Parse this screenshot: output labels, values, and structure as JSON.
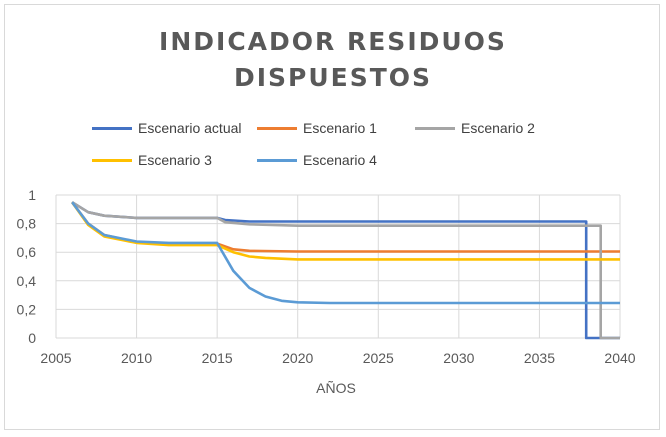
{
  "chart_data": {
    "type": "line",
    "title_lines": [
      "INDICADOR RESIDUOS",
      "DISPUESTOS"
    ],
    "xlabel": "AÑOS",
    "ylabel": "",
    "xlim": [
      2005,
      2040
    ],
    "ylim": [
      0,
      1
    ],
    "x_ticks": [
      2005,
      2010,
      2015,
      2020,
      2025,
      2030,
      2035,
      2040
    ],
    "y_ticks": [
      "0",
      "0,2",
      "0,4",
      "0,6",
      "0,8",
      "1"
    ],
    "grid": true,
    "legend_position": "top",
    "series": [
      {
        "name": "Escenario actual",
        "color": "#4472c4",
        "x": [
          2006,
          2007,
          2008,
          2010,
          2015,
          2015.5,
          2017,
          2020,
          2037.9,
          2037.9,
          2040
        ],
        "y": [
          0.95,
          0.88,
          0.855,
          0.84,
          0.84,
          0.825,
          0.815,
          0.815,
          0.815,
          0,
          0
        ]
      },
      {
        "name": "Escenario 1",
        "color": "#ed7d31",
        "x": [
          2006,
          2007,
          2008,
          2010,
          2012,
          2015,
          2016,
          2017,
          2020,
          2040
        ],
        "y": [
          0.95,
          0.8,
          0.72,
          0.67,
          0.66,
          0.66,
          0.62,
          0.61,
          0.605,
          0.605
        ]
      },
      {
        "name": "Escenario 2",
        "color": "#a5a5a5",
        "x": [
          2006,
          2007,
          2008,
          2010,
          2015,
          2015.5,
          2017,
          2020,
          2038.8,
          2038.8,
          2040
        ],
        "y": [
          0.95,
          0.88,
          0.855,
          0.84,
          0.84,
          0.81,
          0.795,
          0.785,
          0.785,
          0,
          0
        ]
      },
      {
        "name": "Escenario 3",
        "color": "#ffc000",
        "x": [
          2006,
          2007,
          2008,
          2010,
          2012,
          2015,
          2016,
          2017,
          2018,
          2020,
          2040
        ],
        "y": [
          0.95,
          0.79,
          0.71,
          0.665,
          0.65,
          0.65,
          0.6,
          0.57,
          0.56,
          0.55,
          0.55
        ]
      },
      {
        "name": "Escenario 4",
        "color": "#5b9bd5",
        "x": [
          2006,
          2007,
          2008,
          2010,
          2012,
          2015,
          2016,
          2017,
          2018,
          2019,
          2020,
          2022,
          2040
        ],
        "y": [
          0.95,
          0.8,
          0.72,
          0.675,
          0.665,
          0.665,
          0.47,
          0.35,
          0.29,
          0.26,
          0.25,
          0.245,
          0.245
        ]
      }
    ]
  }
}
